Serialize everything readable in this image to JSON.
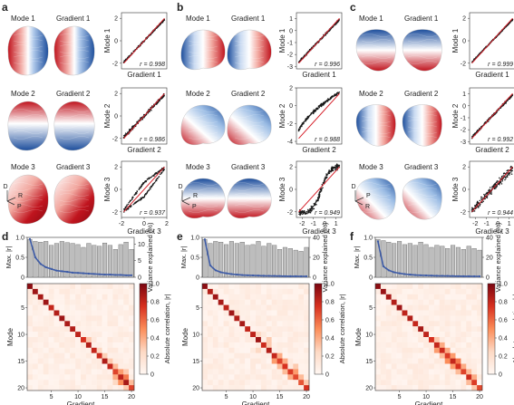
{
  "panels_top": [
    {
      "letter": "a",
      "rows": [
        {
          "mode_label": "Mode 1",
          "gradient_label": "Gradient 1",
          "r_text": "r = 0.998",
          "ylabel": "Mode 1",
          "xlabel": "Gradient 1",
          "yticks": [
            "2",
            "0",
            "-2"
          ],
          "xticks": [],
          "x_range": [
            -2,
            2
          ],
          "y_range": [
            -2.5,
            2.5
          ],
          "trend": "linear",
          "spread": 0.04
        },
        {
          "mode_label": "Mode 2",
          "gradient_label": "Gradient 2",
          "r_text": "r = 0.986",
          "ylabel": "Mode 2",
          "xlabel": "Gradient 2",
          "yticks": [
            "2",
            "0",
            "-2"
          ],
          "xticks": [],
          "x_range": [
            -2,
            2
          ],
          "y_range": [
            -2.5,
            2.5
          ],
          "trend": "linear",
          "spread": 0.08
        },
        {
          "mode_label": "Mode 3",
          "gradient_label": "Gradient 3",
          "r_text": "r = 0.937",
          "ylabel": "Mode 3",
          "xlabel": "Gradient 3",
          "yticks": [
            "2",
            "0",
            "-2"
          ],
          "xticks": [
            "-2",
            "0",
            "2"
          ],
          "x_range": [
            -2,
            2
          ],
          "y_range": [
            -2.5,
            2.5
          ],
          "trend": "loop",
          "spread": 0.16
        }
      ],
      "orientation": [
        "D",
        "R",
        "P"
      ],
      "brain_views": "dorsal"
    },
    {
      "letter": "b",
      "rows": [
        {
          "mode_label": "Mode 1",
          "gradient_label": "Gradient 1",
          "r_text": "r = 0.996",
          "ylabel": "Mode 1",
          "xlabel": "Gradient 1",
          "yticks": [
            "1",
            "0",
            "-1",
            "-2",
            "-3"
          ],
          "xticks": [],
          "x_range": [
            -2.5,
            1.5
          ],
          "y_range": [
            -3.2,
            1.5
          ],
          "trend": "linear",
          "spread": 0.05
        },
        {
          "mode_label": "Mode 2",
          "gradient_label": "Gradient 2",
          "r_text": "r = 0.988",
          "ylabel": "Mode 2",
          "xlabel": "Gradient 2",
          "yticks": [
            "2",
            "0",
            "-2",
            "-4"
          ],
          "xticks": [],
          "x_range": [
            -2.5,
            1.5
          ],
          "y_range": [
            -4.3,
            2
          ],
          "trend": "curved",
          "spread": 0.07
        },
        {
          "mode_label": "Mode 3",
          "gradient_label": "Gradient 3",
          "r_text": "r = 0.949",
          "ylabel": "Mode 3",
          "xlabel": "Gradient 3",
          "yticks": [
            "2",
            "0",
            "-2"
          ],
          "xticks": [
            "-2",
            "-1",
            "0",
            "1"
          ],
          "x_range": [
            -2.5,
            1.5
          ],
          "y_range": [
            -2.5,
            2.5
          ],
          "trend": "sigmoid",
          "spread": 0.13
        }
      ],
      "orientation": [
        "D",
        "R",
        "P"
      ],
      "brain_views": "lateral"
    },
    {
      "letter": "c",
      "rows": [
        {
          "mode_label": "Mode 1",
          "gradient_label": "Gradient 1",
          "r_text": "r = 0.999",
          "ylabel": "Mode 1",
          "xlabel": "Gradient 1",
          "yticks": [
            "2",
            "0",
            "-2"
          ],
          "xticks": [],
          "x_range": [
            -2,
            2
          ],
          "y_range": [
            -2.5,
            2.5
          ],
          "trend": "linear",
          "spread": 0.03
        },
        {
          "mode_label": "Mode 2",
          "gradient_label": "Gradient 2",
          "r_text": "r = 0.992",
          "ylabel": "Mode 2",
          "xlabel": "Gradient 2",
          "yticks": [
            "1",
            "0",
            "-1",
            "-2",
            "-3"
          ],
          "xticks": [],
          "x_range": [
            -3,
            1.5
          ],
          "y_range": [
            -3.2,
            1.5
          ],
          "trend": "linear",
          "spread": 0.06
        },
        {
          "mode_label": "Mode 3",
          "gradient_label": "Gradient 3",
          "r_text": "r = 0.944",
          "ylabel": "Mode 3",
          "xlabel": "Gradient 3",
          "yticks": [
            "2",
            "0",
            "-2"
          ],
          "xticks": [
            "-2",
            "-1",
            "0",
            "1"
          ],
          "x_range": [
            -2.5,
            1.5
          ],
          "y_range": [
            -2.5,
            2.5
          ],
          "trend": "linear",
          "spread": 0.2
        }
      ],
      "orientation": [
        "D",
        "P",
        "R"
      ],
      "brain_views": "oblique"
    }
  ],
  "panels_bottom": [
    {
      "letter": "d",
      "bar_left_label": "Max. |r|",
      "bar_right_label": "Variance explained (%)",
      "bar_left_ticks": [
        "1.0",
        "0.5",
        "0"
      ],
      "bar_right_ticks": [
        "10",
        "5",
        "0"
      ],
      "bar_right_max": 12,
      "matrix_yticks": [
        "5",
        "10",
        "15",
        "20"
      ],
      "matrix_xticks": [
        "5",
        "10",
        "15",
        "20"
      ],
      "matrix_ylabel": "Mode",
      "matrix_xlabel": "Gradient",
      "colorbar_label": "Absolute correlation, |r|",
      "colorbar_ticks": [
        "1.0",
        "0.8",
        "0.6",
        "0.4",
        "0.2",
        "0"
      ]
    },
    {
      "letter": "e",
      "bar_left_label": "Max. |r|",
      "bar_right_label": "Variance explained (%)",
      "bar_left_ticks": [
        "1.0",
        "0.5",
        "0"
      ],
      "bar_right_ticks": [
        "40",
        "20",
        "0"
      ],
      "bar_right_max": 40,
      "matrix_yticks": [
        "5",
        "10",
        "15",
        "20"
      ],
      "matrix_xticks": [
        "5",
        "10",
        "15",
        "20"
      ],
      "matrix_ylabel": "Mode",
      "matrix_xlabel": "Gradient",
      "colorbar_label": "Absolute correlation, |r|",
      "colorbar_ticks": [
        "1.0",
        "0.8",
        "0.6",
        "0.4",
        "0.2",
        "0"
      ]
    },
    {
      "letter": "f",
      "bar_left_label": "Max. |r|",
      "bar_right_label": "Variance explained (%)",
      "bar_left_ticks": [
        "1.0",
        "0.5",
        "0"
      ],
      "bar_right_ticks": [
        "40",
        "20",
        "0"
      ],
      "bar_right_max": 40,
      "matrix_yticks": [
        "5",
        "10",
        "15",
        "20"
      ],
      "matrix_xticks": [
        "5",
        "10",
        "15",
        "20"
      ],
      "matrix_ylabel": "Mode",
      "matrix_xlabel": "Gradient",
      "colorbar_label": "Absolute correlation, |r|",
      "colorbar_ticks": [
        "1.0",
        "0.8",
        "0.6",
        "0.4",
        "0.2",
        "0"
      ]
    }
  ],
  "chart_data": [
    {
      "type": "bar",
      "panel": "d",
      "categories": [
        "1",
        "2",
        "3",
        "4",
        "5",
        "6",
        "7",
        "8",
        "9",
        "10",
        "11",
        "12",
        "13",
        "14",
        "15",
        "16",
        "17",
        "18",
        "19",
        "20"
      ],
      "series": [
        {
          "values": [
            0.95,
            0.9,
            0.88,
            0.9,
            0.8,
            0.85,
            0.9,
            0.87,
            0.85,
            0.82,
            0.75,
            0.85,
            0.8,
            0.78,
            0.86,
            0.8,
            0.7,
            0.82,
            0.88,
            0.7
          ]
        },
        {
          "values": [
            11.5,
            6,
            4,
            3,
            2.5,
            2,
            1.8,
            1.6,
            1.4,
            1.3,
            1.2,
            1.1,
            1,
            0.9,
            0.8,
            0.8,
            0.7,
            0.7,
            0.6,
            0.6
          ]
        }
      ]
    },
    {
      "type": "bar",
      "panel": "e",
      "categories": [
        "1",
        "2",
        "3",
        "4",
        "5",
        "6",
        "7",
        "8",
        "9",
        "10",
        "11",
        "12",
        "13",
        "14",
        "15",
        "16",
        "17",
        "18",
        "19",
        "20"
      ],
      "series": [
        {
          "values": [
            0.95,
            0.85,
            0.9,
            0.88,
            0.82,
            0.9,
            0.85,
            0.88,
            0.8,
            0.82,
            0.9,
            0.78,
            0.85,
            0.8,
            0.7,
            0.75,
            0.72,
            0.68,
            0.65,
            0.75
          ]
        },
        {
          "values": [
            38,
            12,
            7,
            5,
            4,
            3.2,
            2.6,
            2.2,
            2,
            1.8,
            1.6,
            1.5,
            1.4,
            1.3,
            1.2,
            1.1,
            1,
            1,
            0.9,
            0.9
          ]
        }
      ]
    },
    {
      "type": "bar",
      "panel": "f",
      "categories": [
        "1",
        "2",
        "3",
        "4",
        "5",
        "6",
        "7",
        "8",
        "9",
        "10",
        "11",
        "12",
        "13",
        "14",
        "15",
        "16",
        "17",
        "18",
        "19",
        "20"
      ],
      "series": [
        {
          "values": [
            0.95,
            0.92,
            0.88,
            0.85,
            0.9,
            0.82,
            0.85,
            0.8,
            0.88,
            0.82,
            0.75,
            0.8,
            0.78,
            0.72,
            0.8,
            0.75,
            0.7,
            0.78,
            0.72,
            0.68
          ]
        },
        {
          "values": [
            36,
            11,
            7,
            5,
            4,
            3.2,
            2.6,
            2.2,
            2,
            1.8,
            1.6,
            1.5,
            1.4,
            1.3,
            1.2,
            1.1,
            1,
            1,
            0.9,
            0.9
          ]
        }
      ]
    },
    {
      "type": "heatmap",
      "panel": "d",
      "size": 20,
      "diag": [
        0.95,
        0.9,
        0.88,
        0.9,
        0.8,
        0.85,
        0.9,
        0.87,
        0.85,
        0.82,
        0.75,
        0.85,
        0.8,
        0.78,
        0.86,
        0.8,
        0.7,
        0.82,
        0.88,
        0.7
      ],
      "offdiag": [
        [
          17,
          18,
          0.55
        ],
        [
          18,
          17,
          0.5
        ],
        [
          16,
          17,
          0.45
        ],
        [
          17,
          16,
          0.4
        ],
        [
          15,
          16,
          0.35
        ],
        [
          14,
          15,
          0.3
        ],
        [
          10,
          11,
          0.3
        ],
        [
          18,
          19,
          0.35
        ],
        [
          19,
          18,
          0.3
        ],
        [
          12,
          13,
          0.25
        ],
        [
          13,
          14,
          0.28
        ],
        [
          16,
          18,
          0.3
        ],
        [
          18,
          16,
          0.25
        ]
      ]
    },
    {
      "type": "heatmap",
      "panel": "e",
      "size": 20,
      "diag": [
        0.95,
        0.85,
        0.9,
        0.88,
        0.82,
        0.9,
        0.85,
        0.88,
        0.8,
        0.82,
        0.9,
        0.78,
        0.85,
        0.8,
        0.7,
        0.75,
        0.72,
        0.68,
        0.65,
        0.75
      ],
      "offdiag": [
        [
          13,
          14,
          0.4
        ],
        [
          14,
          13,
          0.45
        ],
        [
          14,
          15,
          0.4
        ],
        [
          15,
          14,
          0.35
        ],
        [
          16,
          17,
          0.45
        ],
        [
          17,
          16,
          0.4
        ],
        [
          16,
          15,
          0.35
        ],
        [
          10,
          12,
          0.3
        ],
        [
          12,
          10,
          0.25
        ],
        [
          11,
          12,
          0.3
        ],
        [
          17,
          18,
          0.35
        ],
        [
          18,
          19,
          0.3
        ],
        [
          15,
          17,
          0.3
        ],
        [
          5,
          6,
          0.2
        ],
        [
          9,
          10,
          0.25
        ]
      ]
    },
    {
      "type": "heatmap",
      "panel": "f",
      "size": 20,
      "diag": [
        0.95,
        0.92,
        0.88,
        0.85,
        0.9,
        0.82,
        0.85,
        0.8,
        0.88,
        0.82,
        0.75,
        0.8,
        0.78,
        0.72,
        0.8,
        0.75,
        0.7,
        0.78,
        0.72,
        0.68
      ],
      "offdiag": [
        [
          11,
          12,
          0.4
        ],
        [
          12,
          11,
          0.45
        ],
        [
          12,
          13,
          0.4
        ],
        [
          13,
          12,
          0.35
        ],
        [
          13,
          14,
          0.45
        ],
        [
          14,
          13,
          0.5
        ],
        [
          14,
          15,
          0.55
        ],
        [
          15,
          14,
          0.45
        ],
        [
          15,
          16,
          0.4
        ],
        [
          16,
          15,
          0.35
        ],
        [
          17,
          18,
          0.4
        ],
        [
          18,
          17,
          0.35
        ],
        [
          10,
          11,
          0.3
        ],
        [
          16,
          17,
          0.35
        ],
        [
          19,
          18,
          0.3
        ]
      ]
    }
  ],
  "colors": {
    "red": "#c0141e",
    "blue": "#1d4e9c",
    "bar_fill": "#bdbdbd",
    "bar_line": "#3c5aa6",
    "scatter_dot": "#1a1a1a",
    "fit_line": "#d6202a"
  }
}
